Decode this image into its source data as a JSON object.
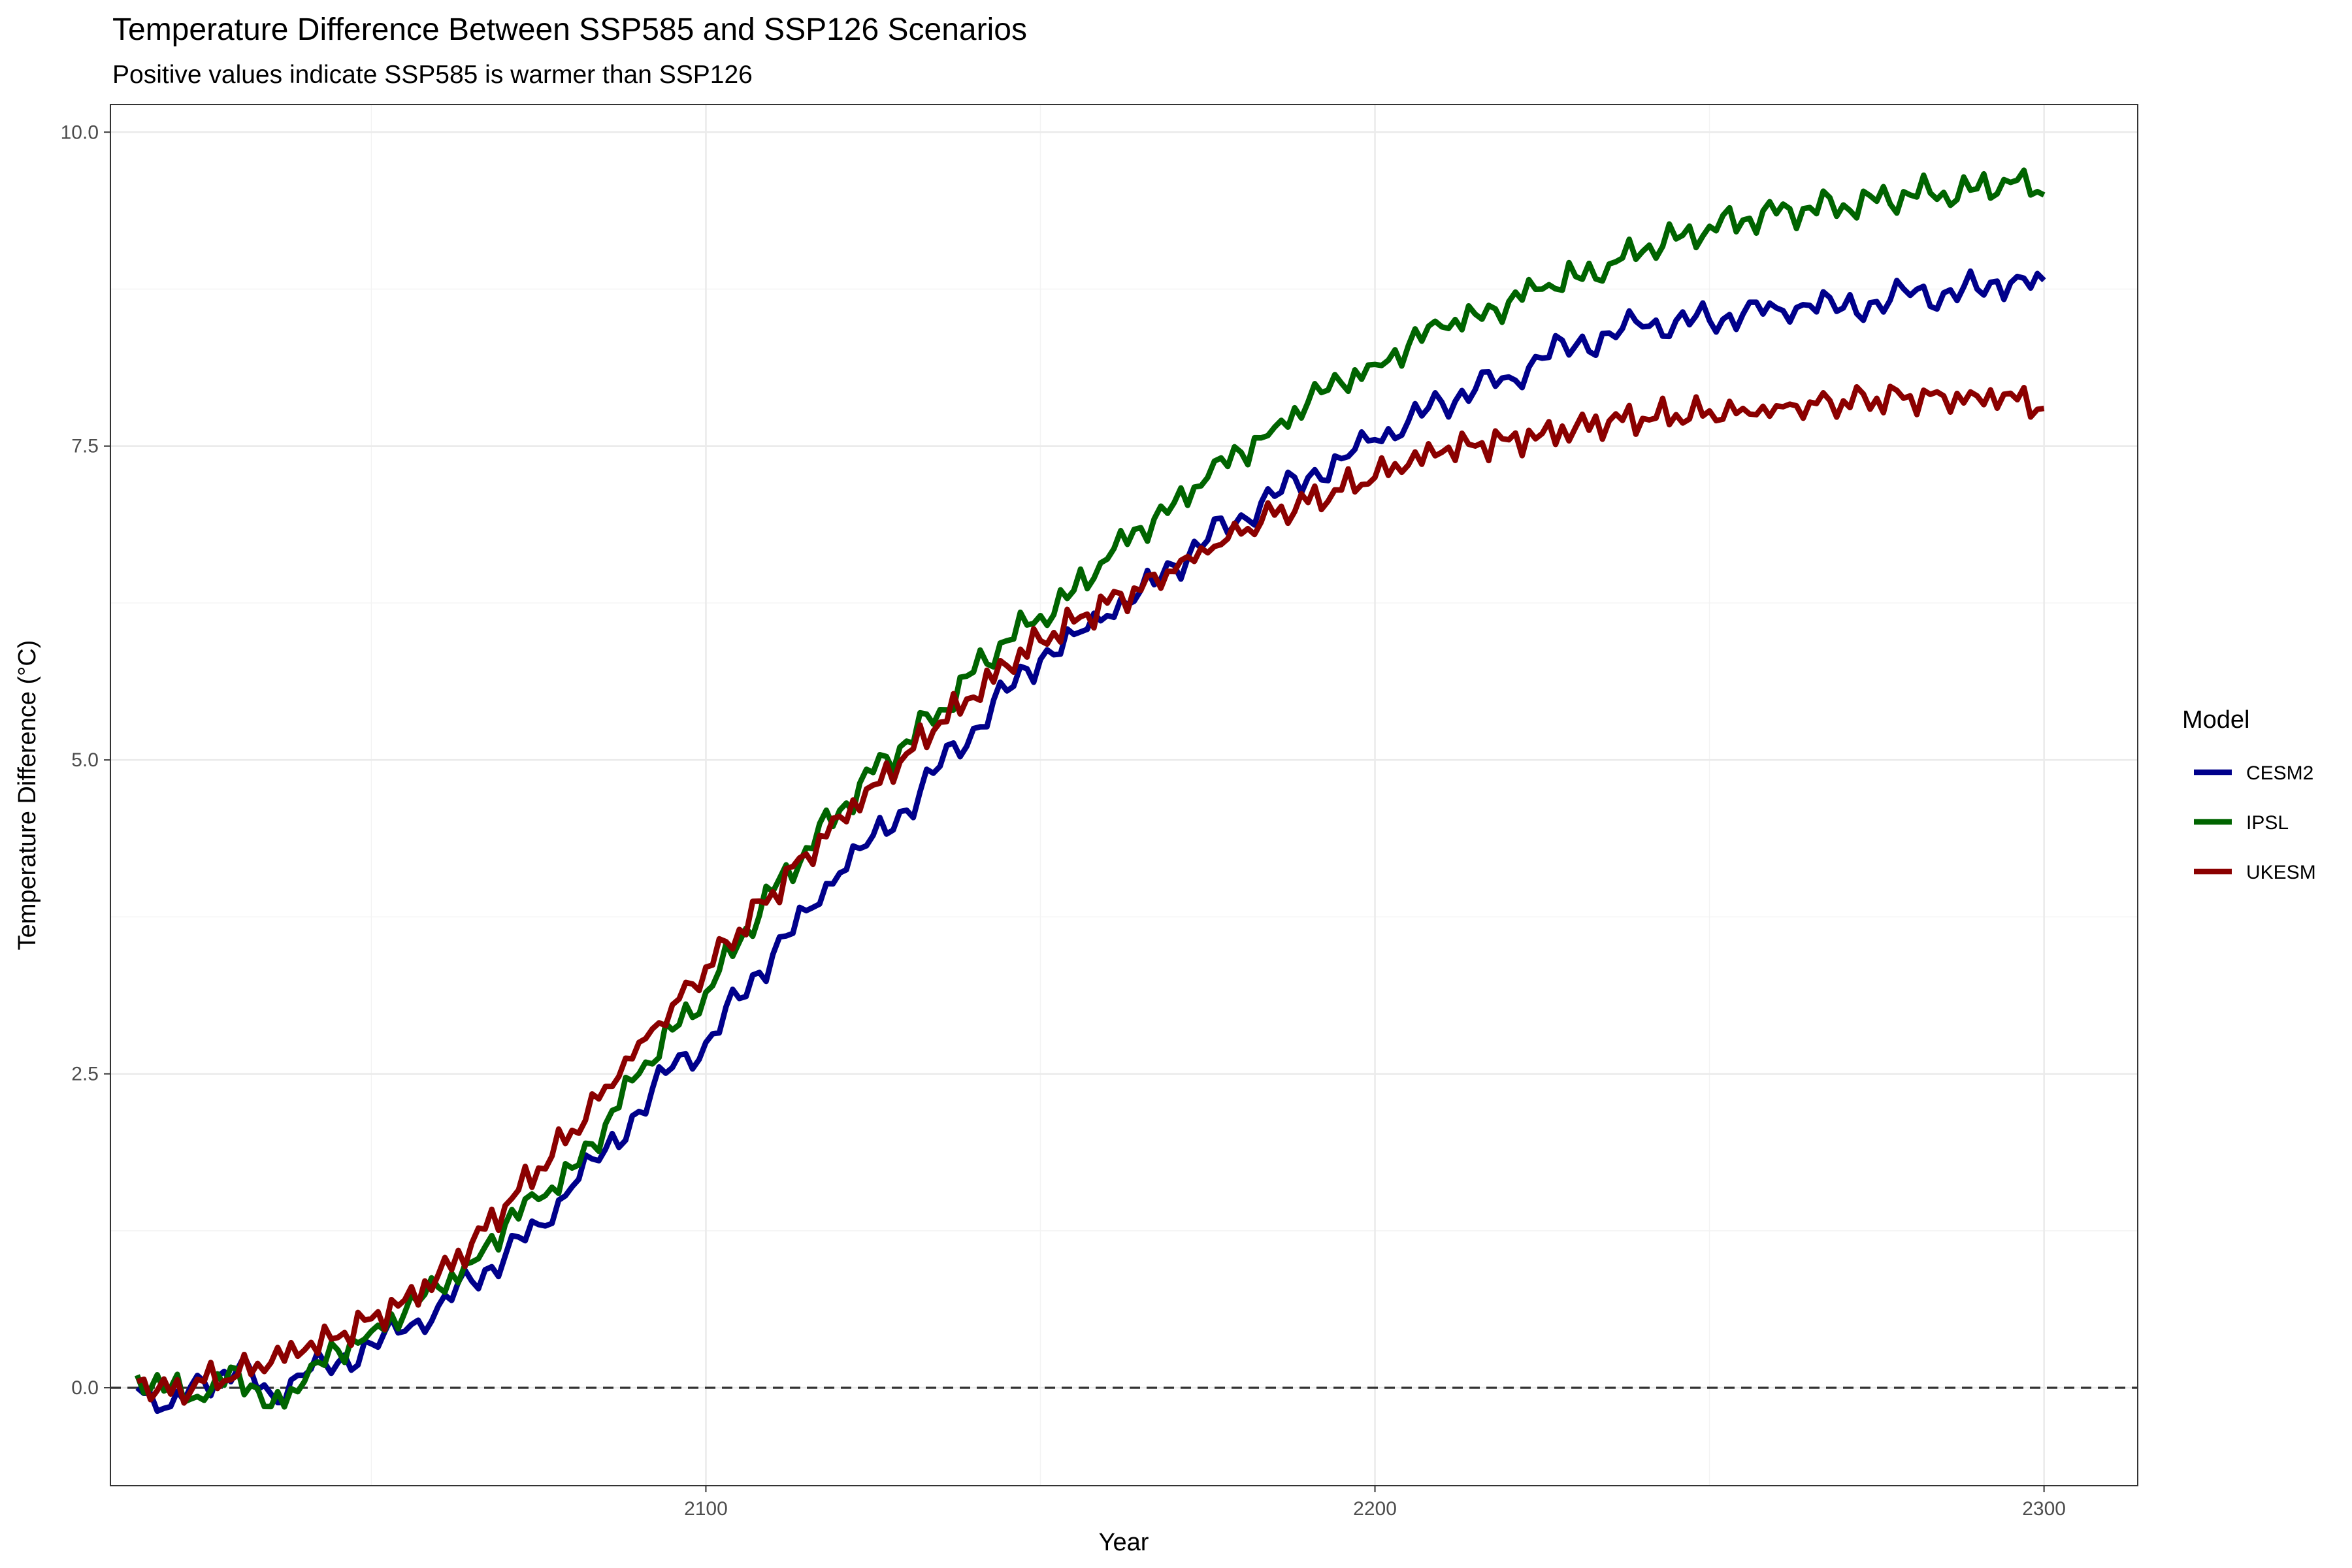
{
  "chart_data": {
    "type": "line",
    "title": "Temperature Difference Between SSP585 and SSP126 Scenarios",
    "subtitle": "Positive values indicate SSP585 is warmer than SSP126",
    "xlabel": "Year",
    "ylabel": "Temperature Difference (°C)",
    "xlim": [
      2011,
      2314
    ],
    "ylim": [
      -0.78,
      10.22
    ],
    "x_ticks": [
      2100,
      2200,
      2300
    ],
    "x_tick_labels": [
      "2100",
      "2200",
      "2300"
    ],
    "y_ticks": [
      0,
      2.5,
      5,
      7.5,
      10
    ],
    "y_tick_labels": [
      "0.0",
      "2.5",
      "5.0",
      "7.5",
      "10.0"
    ],
    "reference_line": {
      "y": 0,
      "style": "dashed",
      "color": "#333333"
    },
    "grid": true,
    "legend": {
      "title": "Model",
      "position": "right"
    },
    "x": [
      2015,
      2020,
      2025,
      2030,
      2035,
      2040,
      2045,
      2050,
      2055,
      2060,
      2065,
      2070,
      2075,
      2080,
      2085,
      2090,
      2095,
      2100,
      2105,
      2110,
      2115,
      2120,
      2125,
      2130,
      2135,
      2140,
      2145,
      2150,
      2155,
      2160,
      2165,
      2170,
      2175,
      2180,
      2185,
      2190,
      2195,
      2200,
      2205,
      2210,
      2215,
      2220,
      2225,
      2230,
      2235,
      2240,
      2245,
      2250,
      2255,
      2260,
      2265,
      2270,
      2275,
      2280,
      2285,
      2290,
      2295,
      2300
    ],
    "series": [
      {
        "name": "CESM2",
        "color": "#00008b",
        "values": [
          0.0,
          -0.15,
          0.05,
          0.15,
          -0.05,
          0.1,
          0.2,
          0.35,
          0.45,
          0.65,
          0.85,
          1.05,
          1.3,
          1.6,
          1.9,
          2.2,
          2.55,
          2.75,
          3.1,
          3.45,
          3.8,
          4.1,
          4.4,
          4.6,
          4.95,
          5.25,
          5.55,
          5.8,
          6.0,
          6.15,
          6.35,
          6.55,
          6.75,
          6.95,
          7.1,
          7.25,
          7.4,
          7.55,
          7.7,
          7.85,
          7.95,
          8.05,
          8.2,
          8.3,
          8.4,
          8.45,
          8.5,
          8.5,
          8.55,
          8.6,
          8.62,
          8.6,
          8.65,
          8.7,
          8.72,
          8.75,
          8.8,
          8.82
        ]
      },
      {
        "name": "IPSL",
        "color": "#006400",
        "values": [
          0.1,
          0.0,
          -0.1,
          0.15,
          -0.15,
          0.05,
          0.3,
          0.45,
          0.6,
          0.8,
          1.0,
          1.3,
          1.5,
          1.75,
          2.1,
          2.5,
          2.85,
          3.15,
          3.55,
          3.95,
          4.3,
          4.6,
          4.9,
          5.15,
          5.4,
          5.7,
          5.95,
          6.15,
          6.35,
          6.6,
          6.85,
          7.05,
          7.25,
          7.45,
          7.65,
          7.85,
          8.0,
          8.15,
          8.3,
          8.45,
          8.55,
          8.65,
          8.75,
          8.85,
          8.95,
          9.05,
          9.15,
          9.25,
          9.3,
          9.35,
          9.4,
          9.42,
          9.45,
          9.5,
          9.52,
          9.55,
          9.6,
          9.5
        ]
      },
      {
        "name": "UKESM",
        "color": "#8b0000",
        "values": [
          0.05,
          -0.05,
          0.05,
          0.1,
          0.2,
          0.3,
          0.4,
          0.55,
          0.7,
          0.9,
          1.15,
          1.45,
          1.75,
          2.05,
          2.4,
          2.75,
          3.05,
          3.35,
          3.65,
          3.95,
          4.25,
          4.55,
          4.8,
          5.05,
          5.3,
          5.5,
          5.75,
          5.95,
          6.1,
          6.25,
          6.35,
          6.5,
          6.65,
          6.8,
          6.95,
          7.05,
          7.15,
          7.25,
          7.35,
          7.45,
          7.5,
          7.55,
          7.6,
          7.65,
          7.7,
          7.72,
          7.75,
          7.78,
          7.8,
          7.82,
          7.85,
          7.86,
          7.88,
          7.9,
          7.9,
          7.9,
          7.92,
          7.8
        ]
      }
    ]
  }
}
